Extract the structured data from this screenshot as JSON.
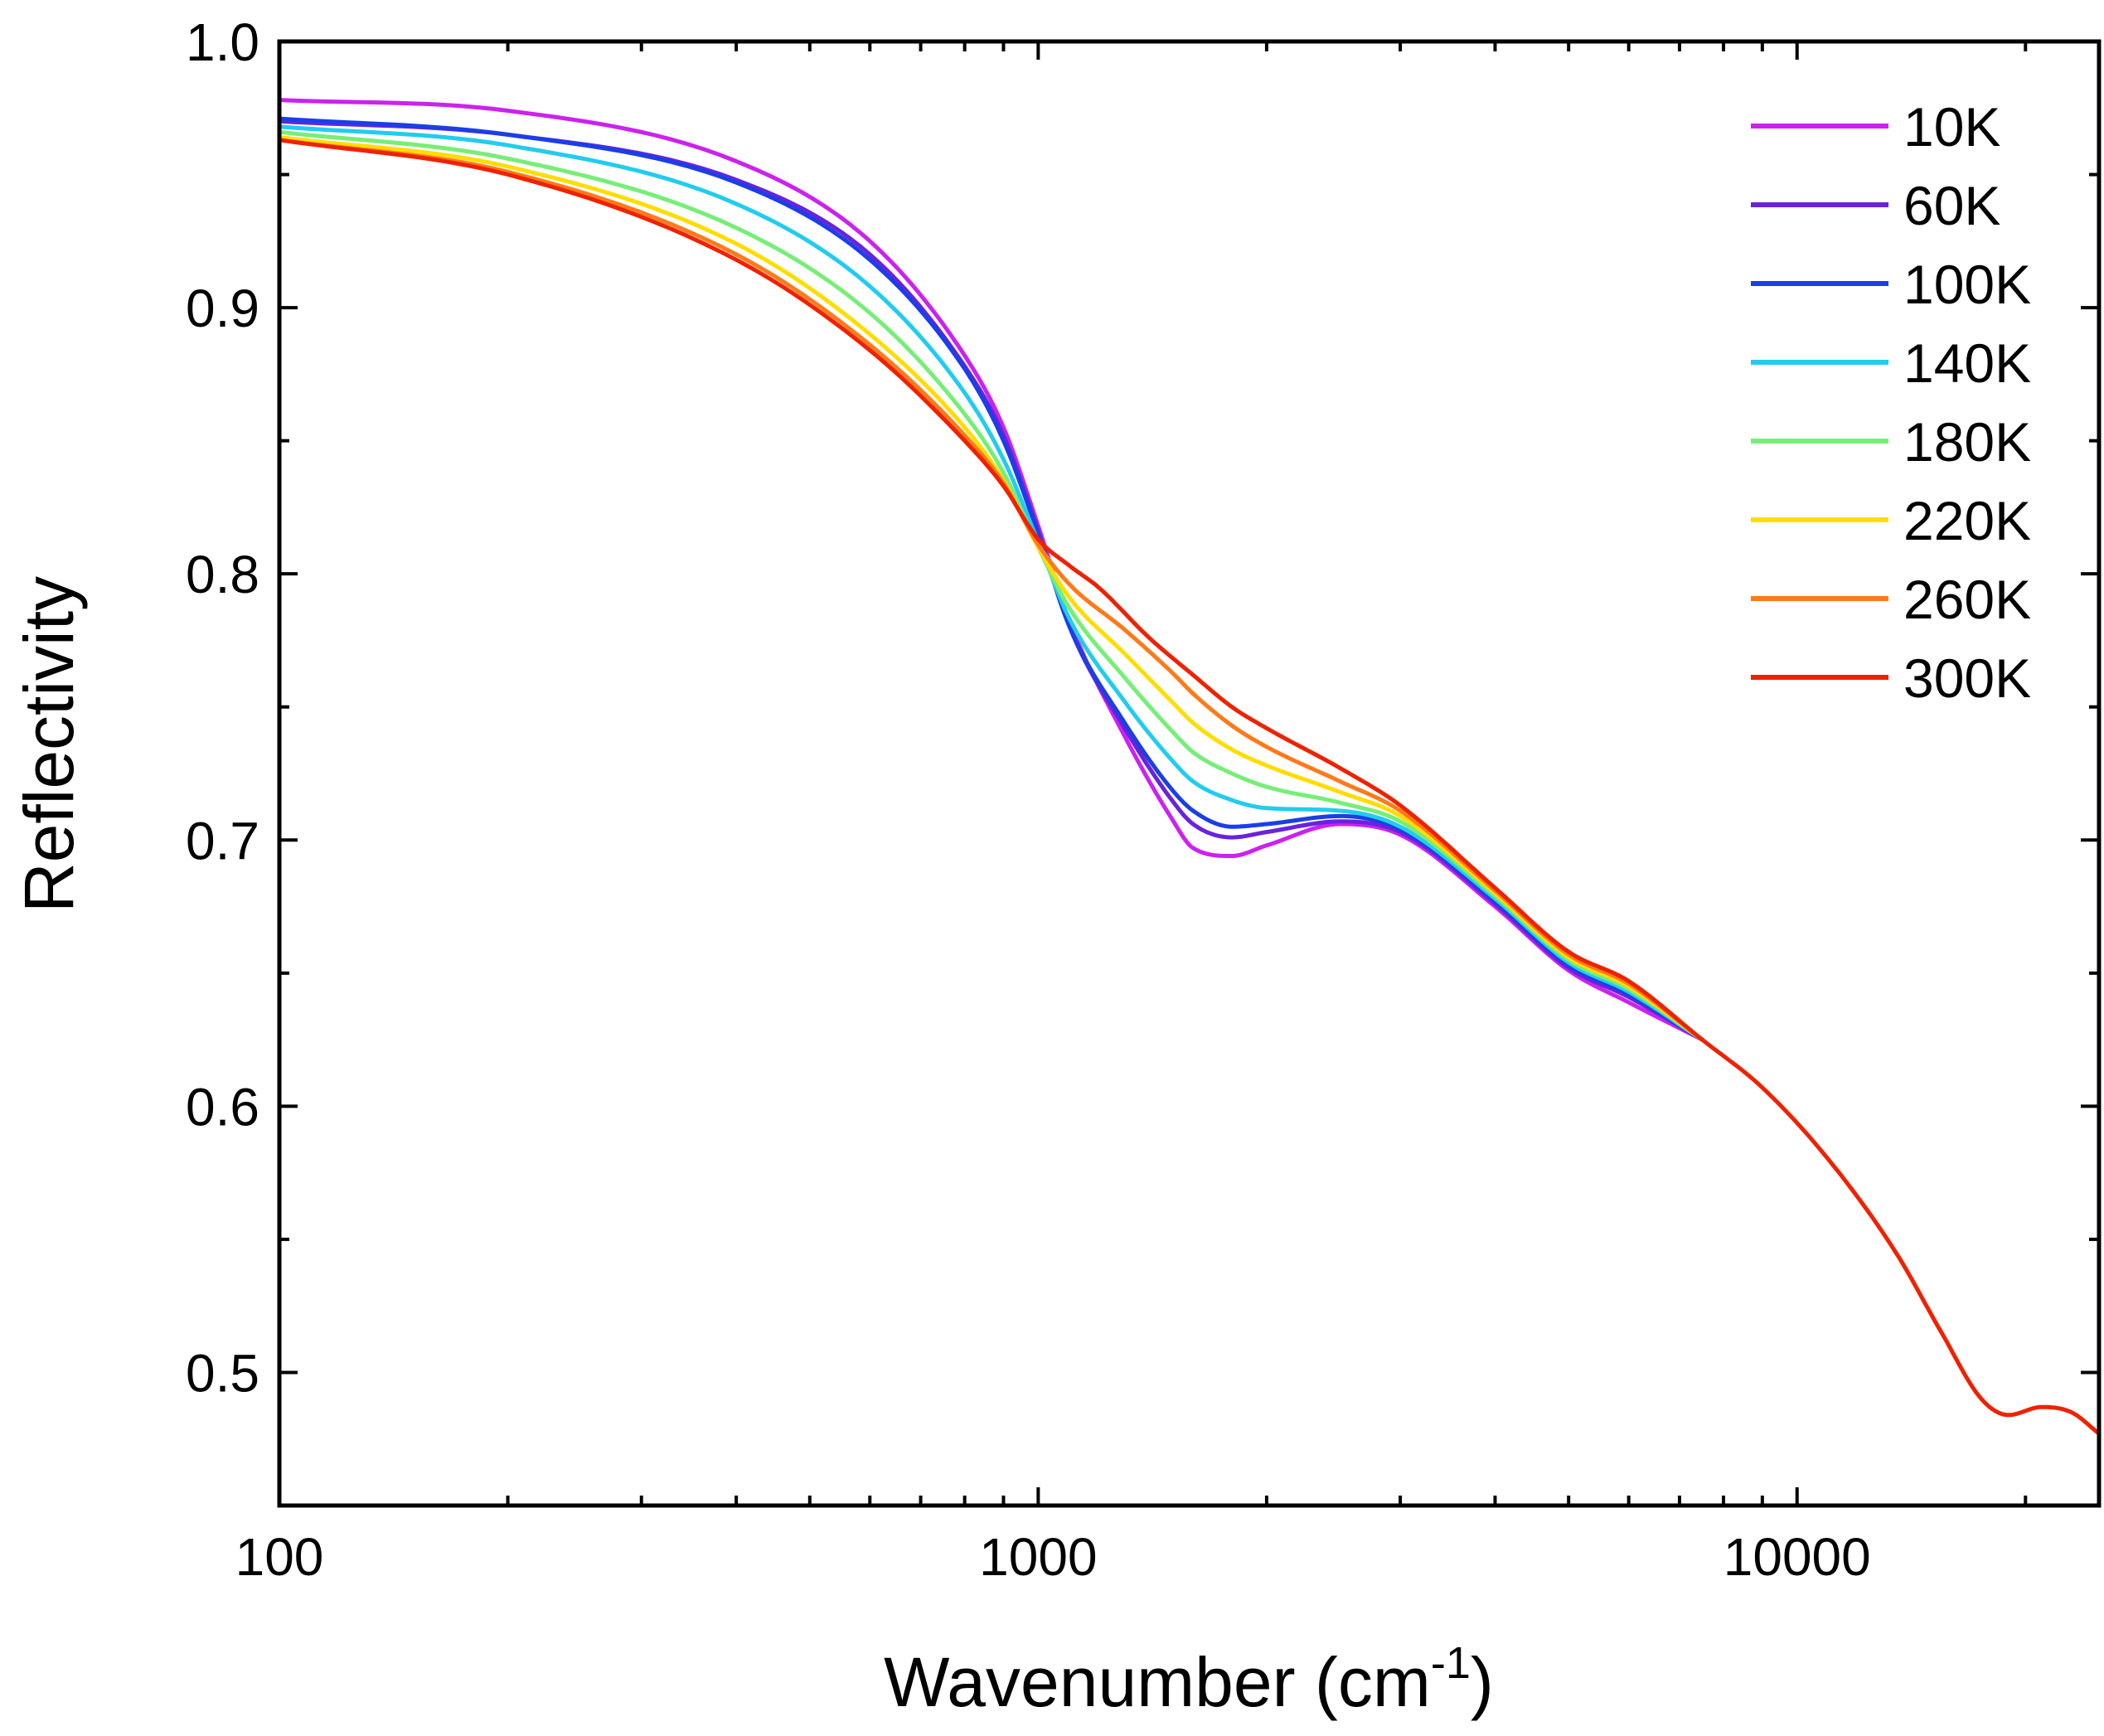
{
  "chart_data": {
    "type": "line",
    "title": "",
    "xlabel": "Wavenumber (cm",
    "xlabel_sup": "-1",
    "xlabel_close": ")",
    "ylabel": "Reflectivity",
    "xscale": "log",
    "xlim": [
      100,
      25000
    ],
    "ylim": [
      0.45,
      1.0
    ],
    "grid": false,
    "legend_position": "top-right",
    "x_ticks": [
      {
        "value": 100,
        "label": "100"
      },
      {
        "value": 1000,
        "label": "1000"
      },
      {
        "value": 10000,
        "label": "10000"
      }
    ],
    "y_ticks": [
      {
        "value": 0.5,
        "label": "0.5"
      },
      {
        "value": 0.6,
        "label": "0.6"
      },
      {
        "value": 0.7,
        "label": "0.7"
      },
      {
        "value": 0.8,
        "label": "0.8"
      },
      {
        "value": 0.9,
        "label": "0.9"
      },
      {
        "value": 1.0,
        "label": "1.0"
      }
    ],
    "series": [
      {
        "name": "10K",
        "color": "#cc22ee",
        "x": [
          100,
          200,
          400,
          600,
          800,
          900,
          1000,
          1100,
          1300,
          1500,
          1600,
          1800,
          2000,
          2500,
          3000,
          4000,
          5000,
          6000,
          7500
        ],
        "y": [
          0.978,
          0.974,
          0.955,
          0.925,
          0.882,
          0.855,
          0.818,
          0.782,
          0.739,
          0.708,
          0.697,
          0.694,
          0.698,
          0.706,
          0.702,
          0.675,
          0.651,
          0.639,
          0.625
        ]
      },
      {
        "name": "60K",
        "color": "#6a22dd",
        "x": [
          100,
          200,
          400,
          600,
          800,
          900,
          1000,
          1100,
          1300,
          1500,
          1600,
          1800,
          2000,
          2500,
          3000,
          4000,
          5000,
          6000,
          7500
        ],
        "y": [
          0.97,
          0.965,
          0.948,
          0.92,
          0.878,
          0.852,
          0.816,
          0.78,
          0.742,
          0.715,
          0.706,
          0.701,
          0.703,
          0.707,
          0.703,
          0.676,
          0.652,
          0.641,
          0.625
        ]
      },
      {
        "name": "100K",
        "color": "#1a3fe6",
        "x": [
          100,
          200,
          400,
          600,
          800,
          900,
          1000,
          1100,
          1300,
          1500,
          1600,
          1800,
          2000,
          2500,
          3000,
          4000,
          5000,
          6000,
          7500
        ],
        "y": [
          0.971,
          0.965,
          0.947,
          0.918,
          0.877,
          0.85,
          0.815,
          0.78,
          0.744,
          0.719,
          0.711,
          0.705,
          0.706,
          0.709,
          0.704,
          0.677,
          0.653,
          0.642,
          0.625
        ]
      },
      {
        "name": "140K",
        "color": "#22ccee",
        "x": [
          100,
          200,
          400,
          600,
          800,
          900,
          1000,
          1100,
          1300,
          1500,
          1600,
          1800,
          2000,
          2500,
          3000,
          4000,
          5000,
          6000,
          7500
        ],
        "y": [
          0.968,
          0.961,
          0.939,
          0.908,
          0.868,
          0.843,
          0.812,
          0.783,
          0.752,
          0.73,
          0.722,
          0.715,
          0.712,
          0.711,
          0.705,
          0.678,
          0.654,
          0.643,
          0.625
        ]
      },
      {
        "name": "180K",
        "color": "#77ee77",
        "x": [
          100,
          200,
          400,
          600,
          800,
          900,
          1000,
          1100,
          1300,
          1500,
          1600,
          1800,
          2000,
          2500,
          3000,
          4000,
          5000,
          6000,
          7500
        ],
        "y": [
          0.966,
          0.956,
          0.93,
          0.898,
          0.86,
          0.838,
          0.81,
          0.787,
          0.761,
          0.741,
          0.733,
          0.725,
          0.72,
          0.714,
          0.707,
          0.679,
          0.655,
          0.644,
          0.625
        ]
      },
      {
        "name": "220K",
        "color": "#ffdd00",
        "x": [
          100,
          200,
          400,
          600,
          800,
          900,
          1000,
          1100,
          1300,
          1500,
          1600,
          1800,
          2000,
          2500,
          3000,
          4000,
          5000,
          6000,
          7500
        ],
        "y": [
          0.964,
          0.953,
          0.924,
          0.89,
          0.855,
          0.835,
          0.81,
          0.791,
          0.77,
          0.752,
          0.744,
          0.734,
          0.728,
          0.718,
          0.709,
          0.68,
          0.656,
          0.645,
          0.625
        ]
      },
      {
        "name": "260K",
        "color": "#ff7a1a",
        "x": [
          100,
          200,
          400,
          600,
          800,
          900,
          1000,
          1100,
          1300,
          1500,
          1600,
          1800,
          2000,
          2500,
          3000,
          4000,
          5000,
          6000,
          7500
        ],
        "y": [
          0.963,
          0.951,
          0.92,
          0.886,
          0.852,
          0.834,
          0.811,
          0.796,
          0.779,
          0.763,
          0.755,
          0.743,
          0.735,
          0.722,
          0.711,
          0.681,
          0.657,
          0.646,
          0.625
        ]
      },
      {
        "name": "300K",
        "color": "#ee2200",
        "x": [
          100,
          200,
          400,
          600,
          800,
          900,
          1000,
          1100,
          1200,
          1400,
          1600,
          1800,
          2000,
          2500,
          3000,
          4000,
          5000,
          6000,
          7500,
          9000,
          11000,
          13500,
          15500,
          17500,
          19000,
          21000,
          23000,
          25000
        ],
        "y": [
          0.963,
          0.95,
          0.918,
          0.884,
          0.85,
          0.833,
          0.813,
          0.803,
          0.795,
          0.776,
          0.762,
          0.75,
          0.742,
          0.727,
          0.713,
          0.682,
          0.658,
          0.647,
          0.625,
          0.607,
          0.58,
          0.545,
          0.515,
          0.49,
          0.484,
          0.487,
          0.485,
          0.477
        ]
      }
    ]
  }
}
